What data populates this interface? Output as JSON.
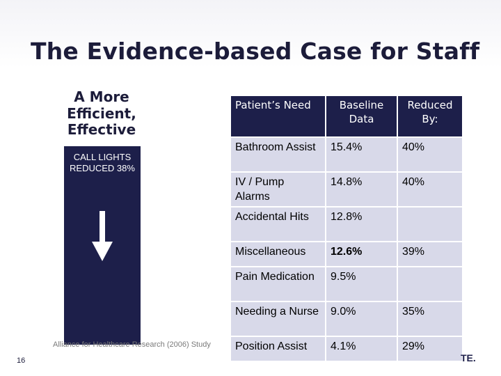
{
  "slide": {
    "title": "The Evidence-based Case for Staff",
    "subtitle": "A More Efficient, Effective",
    "callout": "CALL LIGHTS REDUCED 38%",
    "citation": "Alliance for Healthcare Research (2006) Study",
    "page_number": "16",
    "logo_fragment": "TE."
  },
  "table": {
    "headers": [
      "Patient’s Need",
      "Baseline Data",
      "Reduced By:"
    ],
    "rows": [
      {
        "need": "Bathroom Assist",
        "baseline": "15.4%",
        "reduced": "40%"
      },
      {
        "need": "IV / Pump Alarms",
        "baseline": "14.8%",
        "reduced": "40%"
      },
      {
        "need": "Accidental Hits",
        "baseline": "12.8%",
        "reduced": ""
      },
      {
        "need": "Miscellaneous",
        "baseline": "12.6%",
        "reduced": "39%"
      },
      {
        "need": "Pain Medication",
        "baseline": "9.5%",
        "reduced": ""
      },
      {
        "need": "Needing a Nurse",
        "baseline": "9.0%",
        "reduced": "35%"
      },
      {
        "need": "Position Assist",
        "baseline": "4.1%",
        "reduced": "29%"
      }
    ]
  },
  "colors": {
    "dark_navy": "#1d1f4a",
    "cell_lavender": "#d8d9e9",
    "title_text": "#1c1c3a"
  }
}
